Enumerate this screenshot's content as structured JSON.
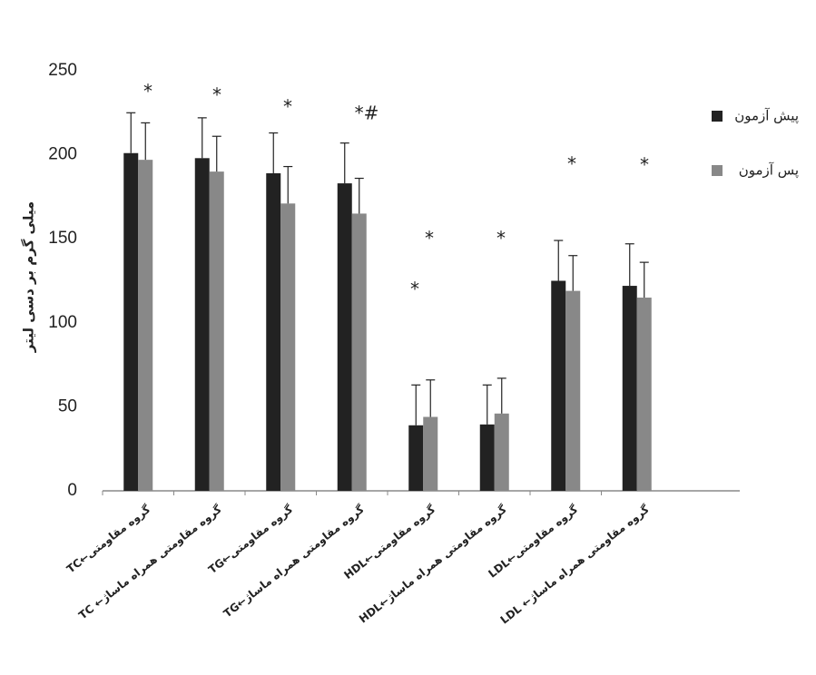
{
  "chart_data": {
    "type": "bar",
    "y_label": "میلی گرم بر دسی لیتر",
    "categories": [
      "TC←گروه مقاومتی",
      "TC ←گروه مقاومتی همراه ماساژ",
      "TG←گروه مقاومتی",
      "TG←گروه مقاومتی همراه ماساژ",
      "HDL←گروه مقاومتی",
      "HDL←گروه مقاومتی همراه ماساژ",
      "LDL←گروه مقاومتی",
      "LDL ←گروه مقاومتی همراه ماساژ"
    ],
    "series": [
      {
        "name": "پیش آزمون",
        "color": "#222222",
        "values": [
          201,
          198,
          189,
          183,
          39,
          39.5,
          125,
          122
        ],
        "errors": [
          24,
          24,
          24,
          24,
          24,
          23.5,
          24,
          25
        ]
      },
      {
        "name": "پس آزمون",
        "color": "#888888",
        "values": [
          197,
          190,
          171,
          165,
          44,
          46,
          119,
          115
        ],
        "errors": [
          22,
          21,
          22,
          21,
          22,
          21,
          21,
          21
        ]
      }
    ],
    "annotations": [
      "*",
      "*",
      "*",
      "*#",
      "*",
      "*",
      "*",
      "*",
      "*"
    ],
    "ylim": [
      0,
      250
    ],
    "yticks": [
      0,
      50,
      100,
      150,
      200,
      250
    ],
    "grid": false,
    "legend": "right"
  }
}
